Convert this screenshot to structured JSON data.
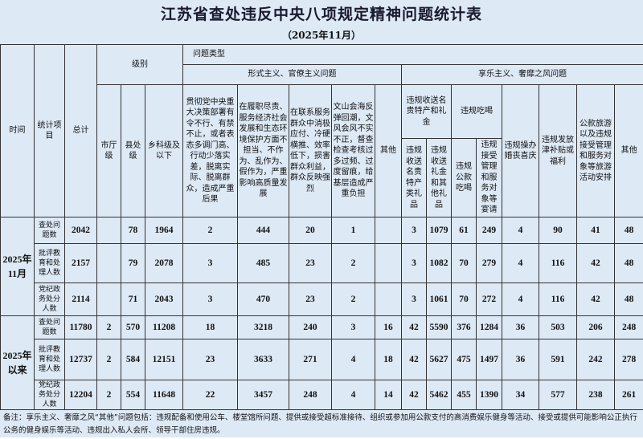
{
  "title": "江苏省查处违反中央八项规定精神问题统计表",
  "subtitle": "（2025年11月）",
  "headers": {
    "time": "时间",
    "item": "统计项目",
    "total": "总计",
    "level": "级别",
    "type": "问题类型",
    "formalism": "形式主义、官僚主义问题",
    "hedonism": "享乐主义、奢靡之风问题",
    "city": "市厅级",
    "county": "县处级",
    "township": "乡科级及以下",
    "f1": "贯彻党中央重大决策部署有令不行、有禁不止，或者表态多调门高、行动少落实差，脱离实际、脱离群众，造成严重后果",
    "f2": "在履职尽责、服务经济社会发展和生态环境保护方面不担当、不作为、乱作为、假作为，严重影响高质量发展",
    "f3": "在联系服务群众中消极应付、冷硬横推、效率低下，损害群众利益，群众反映强烈",
    "f4": "文山会海反弹回潮，文风会风不实不正，督查检查考核过多过频、过度留痕，给基层造成严重负担",
    "f_other": "其他",
    "h_gift": "违规收送名贵特产和礼金",
    "h_gift1": "违规收送名贵特产类礼品",
    "h_gift2": "违规收送礼金和其他礼品",
    "h_eat": "违规吃喝",
    "h_eat1": "违规公款吃喝",
    "h_eat2": "违规接受管理和服务对象等宴请",
    "h_wedding": "违规操办婚丧喜庆",
    "h_allow": "违规发放津补贴或福利",
    "h_travel": "公款旅游以及违规接受管理和服务对象等旅游活动安排",
    "h_other": "其他"
  },
  "groups": [
    {
      "time": "2025年11月",
      "rows": [
        {
          "item": "查处问题数",
          "values": [
            "2042",
            "",
            "78",
            "1964",
            "2",
            "444",
            "20",
            "1",
            "",
            "3",
            "1079",
            "61",
            "249",
            "4",
            "90",
            "41",
            "48"
          ]
        },
        {
          "item": "批评教育和处理人数",
          "values": [
            "2157",
            "",
            "79",
            "2078",
            "3",
            "485",
            "23",
            "2",
            "",
            "3",
            "1082",
            "70",
            "279",
            "4",
            "116",
            "42",
            "48"
          ]
        },
        {
          "item": "党纪政务处分人数",
          "values": [
            "2114",
            "",
            "71",
            "2043",
            "3",
            "470",
            "23",
            "2",
            "",
            "3",
            "1061",
            "70",
            "272",
            "4",
            "116",
            "42",
            "48"
          ]
        }
      ]
    },
    {
      "time": "2025年以来",
      "rows": [
        {
          "item": "查处问题数",
          "values": [
            "11780",
            "2",
            "570",
            "11208",
            "18",
            "3218",
            "240",
            "3",
            "16",
            "42",
            "5590",
            "376",
            "1284",
            "36",
            "503",
            "206",
            "248"
          ]
        },
        {
          "item": "批评教育和处理人数",
          "values": [
            "12737",
            "2",
            "584",
            "12151",
            "23",
            "3633",
            "271",
            "4",
            "18",
            "42",
            "5627",
            "475",
            "1497",
            "36",
            "591",
            "242",
            "278"
          ]
        },
        {
          "item": "党纪政务处分人数",
          "values": [
            "12204",
            "2",
            "554",
            "11648",
            "22",
            "3457",
            "248",
            "4",
            "14",
            "42",
            "5462",
            "455",
            "1390",
            "34",
            "577",
            "238",
            "261"
          ]
        }
      ]
    }
  ],
  "note": "备注：享乐主义、奢靡之风“其他”问题包括：违规配备和使用公车、楼堂馆所问题、提供或接受超标准接待、组织或参加用公款支付的高消费娱乐健身等活动、接受或提供可能影响公正执行公务的健身娱乐等活动、违规出入私人会所、领导干部住房违规。"
}
